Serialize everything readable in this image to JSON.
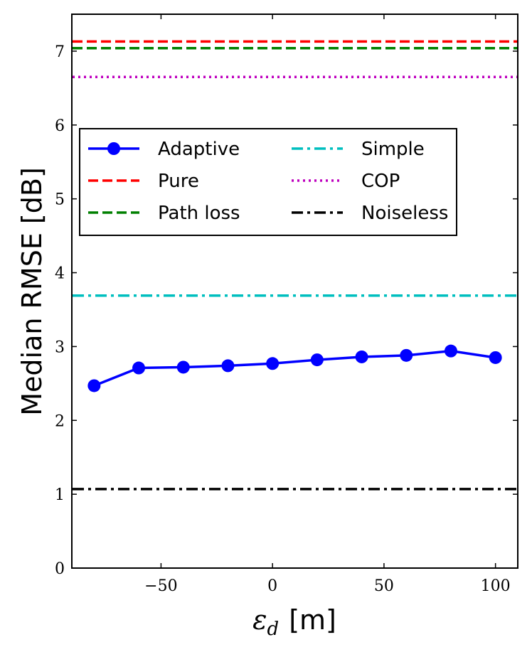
{
  "chart_data": {
    "type": "line",
    "title": "",
    "xlabel": "[m]",
    "xlabel_symbol": "ε",
    "xlabel_subscript": "d",
    "ylabel": "Median RMSE [dB]",
    "xlim": [
      -90,
      110
    ],
    "ylim": [
      0,
      7.5
    ],
    "x_ticks": [
      -50,
      0,
      50,
      100
    ],
    "x_tick_labels": [
      "−50",
      "0",
      "50",
      "100"
    ],
    "y_ticks": [
      0,
      1,
      2,
      3,
      4,
      5,
      6,
      7
    ],
    "y_tick_labels": [
      "0",
      "1",
      "2",
      "3",
      "4",
      "5",
      "6",
      "7"
    ],
    "grid": false,
    "legend_position": "upper-left",
    "series": [
      {
        "name": "Adaptive",
        "kind": "line-markers",
        "color": "#0000ff",
        "x": [
          -80,
          -60,
          -40,
          -20,
          0,
          20,
          40,
          60,
          80,
          100
        ],
        "y": [
          2.47,
          2.71,
          2.72,
          2.74,
          2.77,
          2.82,
          2.86,
          2.88,
          2.94,
          2.85
        ]
      },
      {
        "name": "Pure",
        "kind": "hline",
        "color": "#ff0000",
        "style": "dashed",
        "y": 7.13
      },
      {
        "name": "Path loss",
        "kind": "hline",
        "color": "#008000",
        "style": "dashed",
        "y": 7.04
      },
      {
        "name": "Simple",
        "kind": "hline",
        "color": "#00bfbf",
        "style": "dashdot",
        "y": 3.69
      },
      {
        "name": "COP",
        "kind": "hline",
        "color": "#bf00bf",
        "style": "dotted",
        "y": 6.65
      },
      {
        "name": "Noiseless",
        "kind": "hline",
        "color": "#000000",
        "style": "dashdot",
        "y": 1.07
      }
    ],
    "legend_order": [
      "Adaptive",
      "Pure",
      "Path loss",
      "Simple",
      "COP",
      "Noiseless"
    ]
  }
}
